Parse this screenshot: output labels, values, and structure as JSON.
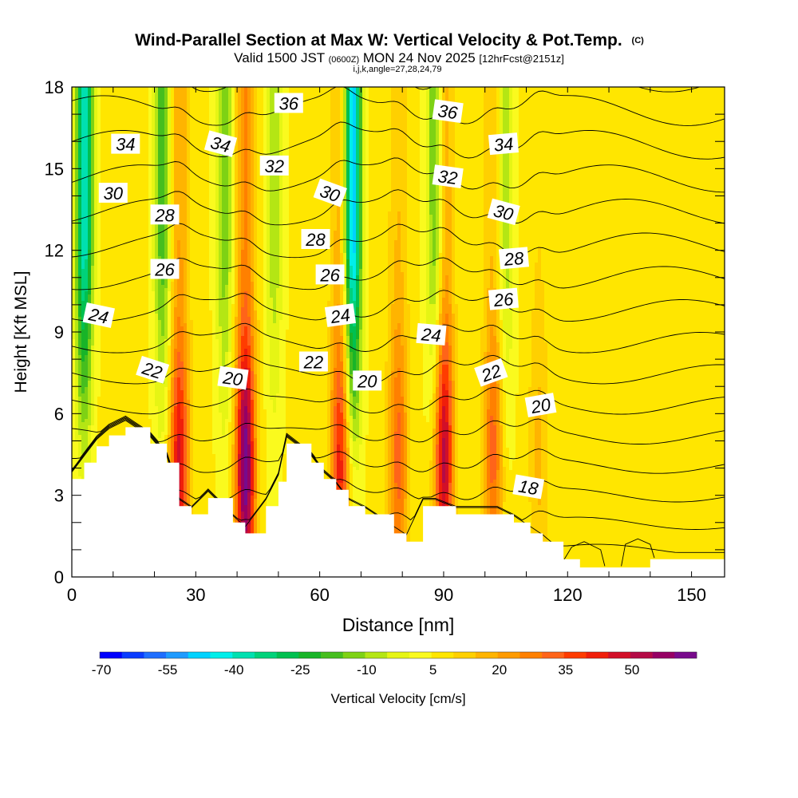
{
  "chart_data": {
    "type": "heatmap",
    "title": "Wind-Parallel Section at Max W: Vertical Velocity & Pot.Temp.",
    "title_tag": "(C)",
    "subtitle_prefix": "Valid 1500 JST",
    "subtitle_utc": "(0600Z)",
    "subtitle_date": "MON 24 Nov 2025",
    "subtitle_run": "[12hrFcst@2151z]",
    "subtitle2": "i,j,k,angle=27,28,24,79",
    "xlabel": "Distance [nm]",
    "ylabel": "Height [Kft MSL]",
    "xlim": [
      0,
      158
    ],
    "ylim": [
      0,
      18
    ],
    "x_ticks": [
      0,
      30,
      60,
      90,
      120,
      150
    ],
    "y_ticks": [
      0,
      3,
      6,
      9,
      12,
      15,
      18
    ],
    "colorbar": {
      "label": "Vertical Velocity [cm/s]",
      "levels": [
        -70,
        -65,
        -60,
        -55,
        -50,
        -45,
        -40,
        -35,
        -30,
        -25,
        -20,
        -15,
        -10,
        -5,
        0,
        5,
        10,
        15,
        20,
        25,
        30,
        35,
        40,
        45,
        50,
        55,
        60
      ],
      "tick_labels": [
        "-70",
        "-55",
        "-40",
        "-25",
        "-10",
        "5",
        "20",
        "35",
        "50"
      ],
      "colors": [
        "#0000ff",
        "#0a3cff",
        "#1e6eff",
        "#1e9bff",
        "#00d2ff",
        "#00eeea",
        "#00e0b0",
        "#00d27a",
        "#00c050",
        "#18b428",
        "#46be1e",
        "#7ed214",
        "#b4e614",
        "#e6f514",
        "#fafa1e",
        "#ffe600",
        "#ffd000",
        "#ffb400",
        "#ff9b00",
        "#ff8000",
        "#ff6419",
        "#ff3c00",
        "#f01e0a",
        "#d20f28",
        "#b40a46",
        "#960064",
        "#780a8c"
      ]
    },
    "updraft_columns": [
      {
        "x": 26,
        "w_max": 40
      },
      {
        "x": 42,
        "w_max": 55
      },
      {
        "x": 65,
        "w_max": 35
      },
      {
        "x": 79,
        "w_max": 25
      },
      {
        "x": 90,
        "w_max": 45
      },
      {
        "x": 102,
        "w_max": 25
      },
      {
        "x": 113,
        "w_max": 10
      }
    ],
    "downdraft_columns": [
      {
        "x": 3,
        "w_min": -45
      },
      {
        "x": 22,
        "w_min": -25
      },
      {
        "x": 37,
        "w_min": -20
      },
      {
        "x": 49,
        "w_min": -15
      },
      {
        "x": 68,
        "w_min": -55
      },
      {
        "x": 88,
        "w_min": -25
      },
      {
        "x": 105,
        "w_min": -15
      }
    ],
    "theta_levels": [
      18,
      20,
      22,
      24,
      26,
      28,
      30,
      32,
      34,
      36
    ],
    "contour_labels": [
      {
        "text": "36",
        "x": 52.5,
        "y": 17.4,
        "angle": 0
      },
      {
        "text": "36",
        "x": 91.0,
        "y": 17.1,
        "angle": 8
      },
      {
        "text": "34",
        "x": 13.0,
        "y": 15.9,
        "angle": 0
      },
      {
        "text": "34",
        "x": 36.0,
        "y": 15.9,
        "angle": 15
      },
      {
        "text": "34",
        "x": 104.5,
        "y": 15.9,
        "angle": -5
      },
      {
        "text": "32",
        "x": 49.0,
        "y": 15.1,
        "angle": 0
      },
      {
        "text": "32",
        "x": 91.0,
        "y": 14.7,
        "angle": 8
      },
      {
        "text": "30",
        "x": 10.0,
        "y": 14.1,
        "angle": 0
      },
      {
        "text": "30",
        "x": 62.5,
        "y": 14.1,
        "angle": 20
      },
      {
        "text": "30",
        "x": 104.5,
        "y": 13.4,
        "angle": 15
      },
      {
        "text": "28",
        "x": 22.5,
        "y": 13.3,
        "angle": 0
      },
      {
        "text": "28",
        "x": 59.0,
        "y": 12.4,
        "angle": 0
      },
      {
        "text": "28",
        "x": 107.0,
        "y": 11.7,
        "angle": -5
      },
      {
        "text": "26",
        "x": 22.5,
        "y": 11.3,
        "angle": 0
      },
      {
        "text": "26",
        "x": 62.5,
        "y": 11.1,
        "angle": 0
      },
      {
        "text": "26",
        "x": 104.5,
        "y": 10.2,
        "angle": -5
      },
      {
        "text": "24",
        "x": 6.5,
        "y": 9.6,
        "angle": 12
      },
      {
        "text": "24",
        "x": 65.0,
        "y": 9.6,
        "angle": -8
      },
      {
        "text": "24",
        "x": 87.0,
        "y": 8.9,
        "angle": 5
      },
      {
        "text": "22",
        "x": 19.5,
        "y": 7.6,
        "angle": 18
      },
      {
        "text": "22",
        "x": 58.5,
        "y": 7.9,
        "angle": 0
      },
      {
        "text": "22",
        "x": 101.5,
        "y": 7.5,
        "angle": -20
      },
      {
        "text": "20",
        "x": 39.0,
        "y": 7.3,
        "angle": 8
      },
      {
        "text": "20",
        "x": 71.5,
        "y": 7.2,
        "angle": 0
      },
      {
        "text": "20",
        "x": 113.5,
        "y": 6.3,
        "angle": -10
      },
      {
        "text": "18",
        "x": 110.5,
        "y": 3.3,
        "angle": 10
      }
    ],
    "terrain_profile": [
      [
        0,
        3.6
      ],
      [
        3,
        4.2
      ],
      [
        6,
        4.8
      ],
      [
        9,
        5.2
      ],
      [
        13,
        5.5
      ],
      [
        19,
        4.9
      ],
      [
        23,
        4.2
      ],
      [
        26,
        2.6
      ],
      [
        29,
        2.3
      ],
      [
        33,
        2.9
      ],
      [
        39,
        2.0
      ],
      [
        42,
        1.6
      ],
      [
        47,
        2.6
      ],
      [
        50,
        3.5
      ],
      [
        52,
        4.9
      ],
      [
        58,
        4.2
      ],
      [
        61,
        3.6
      ],
      [
        64,
        3.2
      ],
      [
        67,
        2.6
      ],
      [
        71,
        2.3
      ],
      [
        78,
        1.6
      ],
      [
        81,
        1.3
      ],
      [
        85,
        2.6
      ],
      [
        88,
        2.6
      ],
      [
        93,
        2.3
      ],
      [
        99,
        2.3
      ],
      [
        103,
        2.3
      ],
      [
        107,
        2.0
      ],
      [
        111,
        1.6
      ],
      [
        114,
        1.3
      ],
      [
        119,
        0.65
      ],
      [
        123,
        0.35
      ],
      [
        128,
        0.35
      ],
      [
        133,
        0.35
      ],
      [
        136,
        0.35
      ],
      [
        140,
        0.65
      ],
      [
        150,
        0.65
      ],
      [
        158,
        0.65
      ]
    ],
    "inner_contours": [
      {
        "value": 18,
        "points": [
          [
            119,
            0.6
          ],
          [
            121,
            1.1
          ],
          [
            124,
            1.3
          ],
          [
            128,
            1.0
          ],
          [
            129,
            0.4
          ]
        ]
      },
      {
        "value": 18,
        "points": [
          [
            133,
            0.4
          ],
          [
            134,
            1.2
          ],
          [
            137,
            1.4
          ],
          [
            140,
            1.2
          ],
          [
            141,
            0.7
          ]
        ]
      }
    ]
  }
}
